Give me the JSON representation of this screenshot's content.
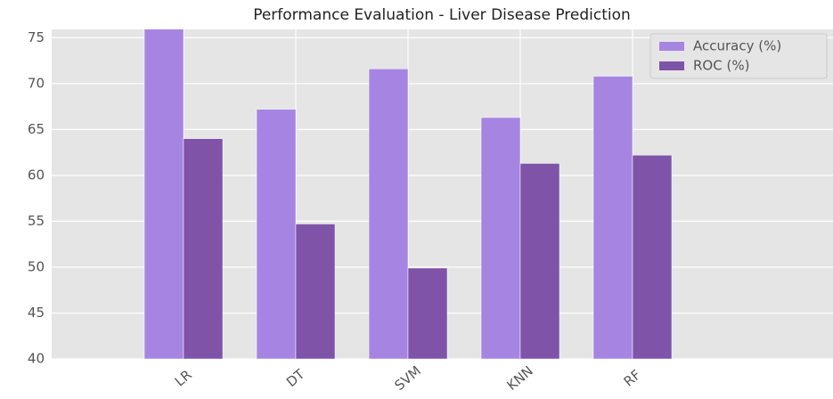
{
  "chart_data": {
    "type": "bar",
    "title": "Performance Evaluation - Liver Disease Prediction",
    "categories": [
      "LR",
      "DT",
      "SVM",
      "KNN",
      "RF"
    ],
    "series": [
      {
        "name": "Accuracy (%)",
        "color": "#a685e2",
        "values": [
          76,
          67.2,
          71.6,
          66.3,
          70.8
        ]
      },
      {
        "name": "ROC (%)",
        "color": "#7e53a8",
        "values": [
          64.0,
          54.7,
          49.9,
          61.3,
          62.2
        ]
      }
    ],
    "ylim": [
      40,
      75.9
    ],
    "yticks": [
      40,
      45,
      50,
      55,
      60,
      65,
      70,
      75
    ],
    "grid": true,
    "legend": "upper right"
  }
}
